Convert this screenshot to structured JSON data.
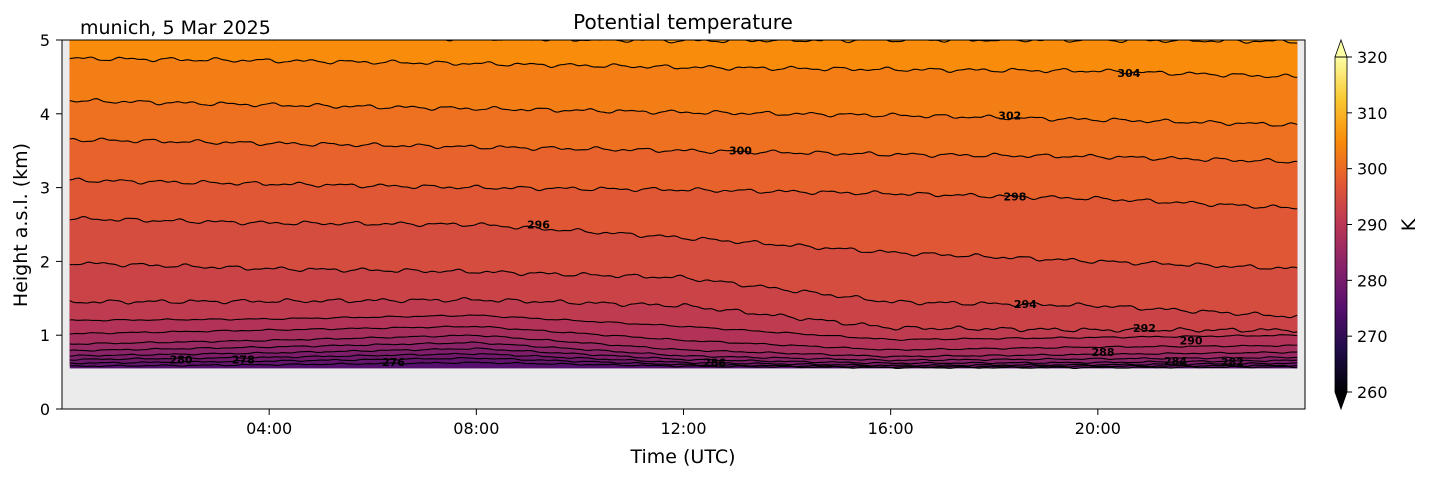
{
  "chart_data": {
    "type": "heatmap",
    "subtype": "filled-contour",
    "title": "Potential temperature",
    "subtitle": "munich, 5 Mar 2025",
    "xlabel": "Time (UTC)",
    "ylabel": "Height a.s.l. (km)",
    "xlim_hours": [
      0,
      24
    ],
    "ylim": [
      0,
      5
    ],
    "x_ticks": [
      {
        "value": 4,
        "label": "04:00"
      },
      {
        "value": 8,
        "label": "08:00"
      },
      {
        "value": 12,
        "label": "12:00"
      },
      {
        "value": 16,
        "label": "16:00"
      },
      {
        "value": 20,
        "label": "20:00"
      }
    ],
    "y_ticks": [
      {
        "value": 0,
        "label": "0"
      },
      {
        "value": 1,
        "label": "1"
      },
      {
        "value": 2,
        "label": "2"
      },
      {
        "value": 3,
        "label": "3"
      },
      {
        "value": 4,
        "label": "4"
      },
      {
        "value": 5,
        "label": "5"
      }
    ],
    "data_extent": {
      "time_hours": [
        0.15,
        23.85
      ],
      "height_km": [
        0.55,
        5
      ]
    },
    "colorbar": {
      "label": "K",
      "colormap": "inferno",
      "range": [
        260,
        320
      ],
      "extend": "both",
      "ticks": [
        {
          "value": 260,
          "label": "260"
        },
        {
          "value": 270,
          "label": "270"
        },
        {
          "value": 280,
          "label": "280"
        },
        {
          "value": 290,
          "label": "290"
        },
        {
          "value": 300,
          "label": "300"
        },
        {
          "value": 310,
          "label": "310"
        },
        {
          "value": 320,
          "label": "320"
        }
      ]
    },
    "contour_times_hours": [
      0.15,
      4,
      8,
      12,
      16,
      20,
      23.85
    ],
    "contours": [
      {
        "level": 276,
        "heights_km": [
          0.58,
          0.6,
          0.63,
          0.58,
          0.56,
          0.56,
          0.57
        ]
      },
      {
        "level": 278,
        "heights_km": [
          0.62,
          0.65,
          0.69,
          0.6,
          0.57,
          0.58,
          0.59
        ]
      },
      {
        "level": 280,
        "heights_km": [
          0.67,
          0.7,
          0.75,
          0.63,
          0.59,
          0.6,
          0.62
        ]
      },
      {
        "level": 282,
        "heights_km": [
          0.72,
          0.76,
          0.82,
          0.67,
          0.62,
          0.63,
          0.66
        ]
      },
      {
        "level": 284,
        "heights_km": [
          0.79,
          0.84,
          0.9,
          0.72,
          0.66,
          0.68,
          0.7
        ]
      },
      {
        "level": 286,
        "heights_km": [
          0.88,
          0.93,
          1.0,
          0.8,
          0.71,
          0.74,
          0.77
        ]
      },
      {
        "level": 288,
        "heights_km": [
          1.02,
          1.07,
          1.12,
          0.93,
          0.8,
          0.84,
          0.86
        ]
      },
      {
        "level": 290,
        "heights_km": [
          1.2,
          1.22,
          1.27,
          1.12,
          0.94,
          0.97,
          1.0
        ]
      },
      {
        "level": 292,
        "heights_km": [
          1.45,
          1.46,
          1.48,
          1.4,
          1.1,
          1.07,
          1.07
        ]
      },
      {
        "level": 294,
        "heights_km": [
          1.98,
          1.9,
          1.86,
          1.78,
          1.45,
          1.4,
          1.25
        ]
      },
      {
        "level": 296,
        "heights_km": [
          2.58,
          2.52,
          2.5,
          2.32,
          2.12,
          2.0,
          1.9
        ]
      },
      {
        "level": 298,
        "heights_km": [
          3.1,
          3.05,
          3.0,
          2.97,
          2.92,
          2.85,
          2.72
        ]
      },
      {
        "level": 300,
        "heights_km": [
          3.65,
          3.6,
          3.55,
          3.5,
          3.45,
          3.42,
          3.35
        ]
      },
      {
        "level": 302,
        "heights_km": [
          4.18,
          4.12,
          4.07,
          4.02,
          3.98,
          3.92,
          3.85
        ]
      },
      {
        "level": 304,
        "heights_km": [
          4.75,
          4.72,
          4.68,
          4.63,
          4.6,
          4.58,
          4.5
        ]
      },
      {
        "level": 306,
        "heights_km": [
          5.05,
          5.03,
          5.02,
          4.99,
          5.0,
          5.0,
          4.98
        ]
      }
    ],
    "contour_labels": [
      {
        "text": "280",
        "time": 2.3,
        "height": 0.67
      },
      {
        "text": "278",
        "time": 3.5,
        "height": 0.67
      },
      {
        "text": "276",
        "time": 6.4,
        "height": 0.64
      },
      {
        "text": "286",
        "time": 12.6,
        "height": 0.63
      },
      {
        "text": "288",
        "time": 20.1,
        "height": 0.77
      },
      {
        "text": "284",
        "time": 21.5,
        "height": 0.65
      },
      {
        "text": "282",
        "time": 22.6,
        "height": 0.64
      },
      {
        "text": "290",
        "time": 21.8,
        "height": 0.93
      },
      {
        "text": "292",
        "time": 20.9,
        "height": 1.1
      },
      {
        "text": "294",
        "time": 18.6,
        "height": 1.42
      },
      {
        "text": "296",
        "time": 9.2,
        "height": 2.5
      },
      {
        "text": "298",
        "time": 18.4,
        "height": 2.88
      },
      {
        "text": "300",
        "time": 13.1,
        "height": 3.5
      },
      {
        "text": "302",
        "time": 18.3,
        "height": 3.98
      },
      {
        "text": "304",
        "time": 20.6,
        "height": 4.55
      }
    ],
    "colors": {
      "axes_background": "#ebebeb",
      "contour_line": "#000000"
    }
  }
}
